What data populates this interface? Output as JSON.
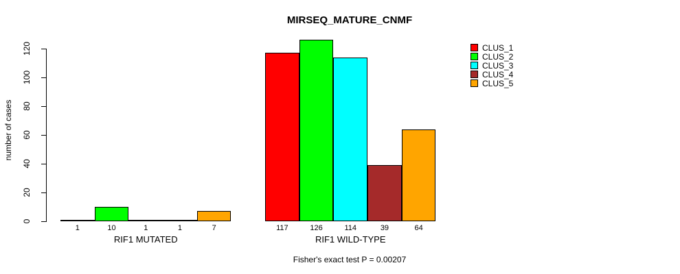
{
  "page": {
    "background_color": "#FFFFFF",
    "text_color": "#000000"
  },
  "chart_data": {
    "type": "bar",
    "title": "MIRSEQ_MATURE_CNMF",
    "ylabel": "number of cases",
    "xlabel": "",
    "ylim": [
      0,
      120
    ],
    "yticks": [
      0,
      20,
      40,
      60,
      80,
      100,
      120
    ],
    "grid": false,
    "legend_position": "right",
    "bar_border_color": "#000000",
    "series": [
      {
        "name": "CLUS_1",
        "color": "#FF0000"
      },
      {
        "name": "CLUS_2",
        "color": "#00FF00"
      },
      {
        "name": "CLUS_3",
        "color": "#00FFFF"
      },
      {
        "name": "CLUS_4",
        "color": "#A52A2A"
      },
      {
        "name": "CLUS_5",
        "color": "#FFA500"
      }
    ],
    "groups": [
      {
        "label": "RIF1 MUTATED",
        "values": [
          1,
          10,
          1,
          1,
          7
        ]
      },
      {
        "label": "RIF1 WILD-TYPE",
        "values": [
          117,
          126,
          114,
          39,
          64
        ]
      }
    ],
    "bar_value_labels_shown": true,
    "annotation": "Fisher's exact test P = 0.00207"
  }
}
